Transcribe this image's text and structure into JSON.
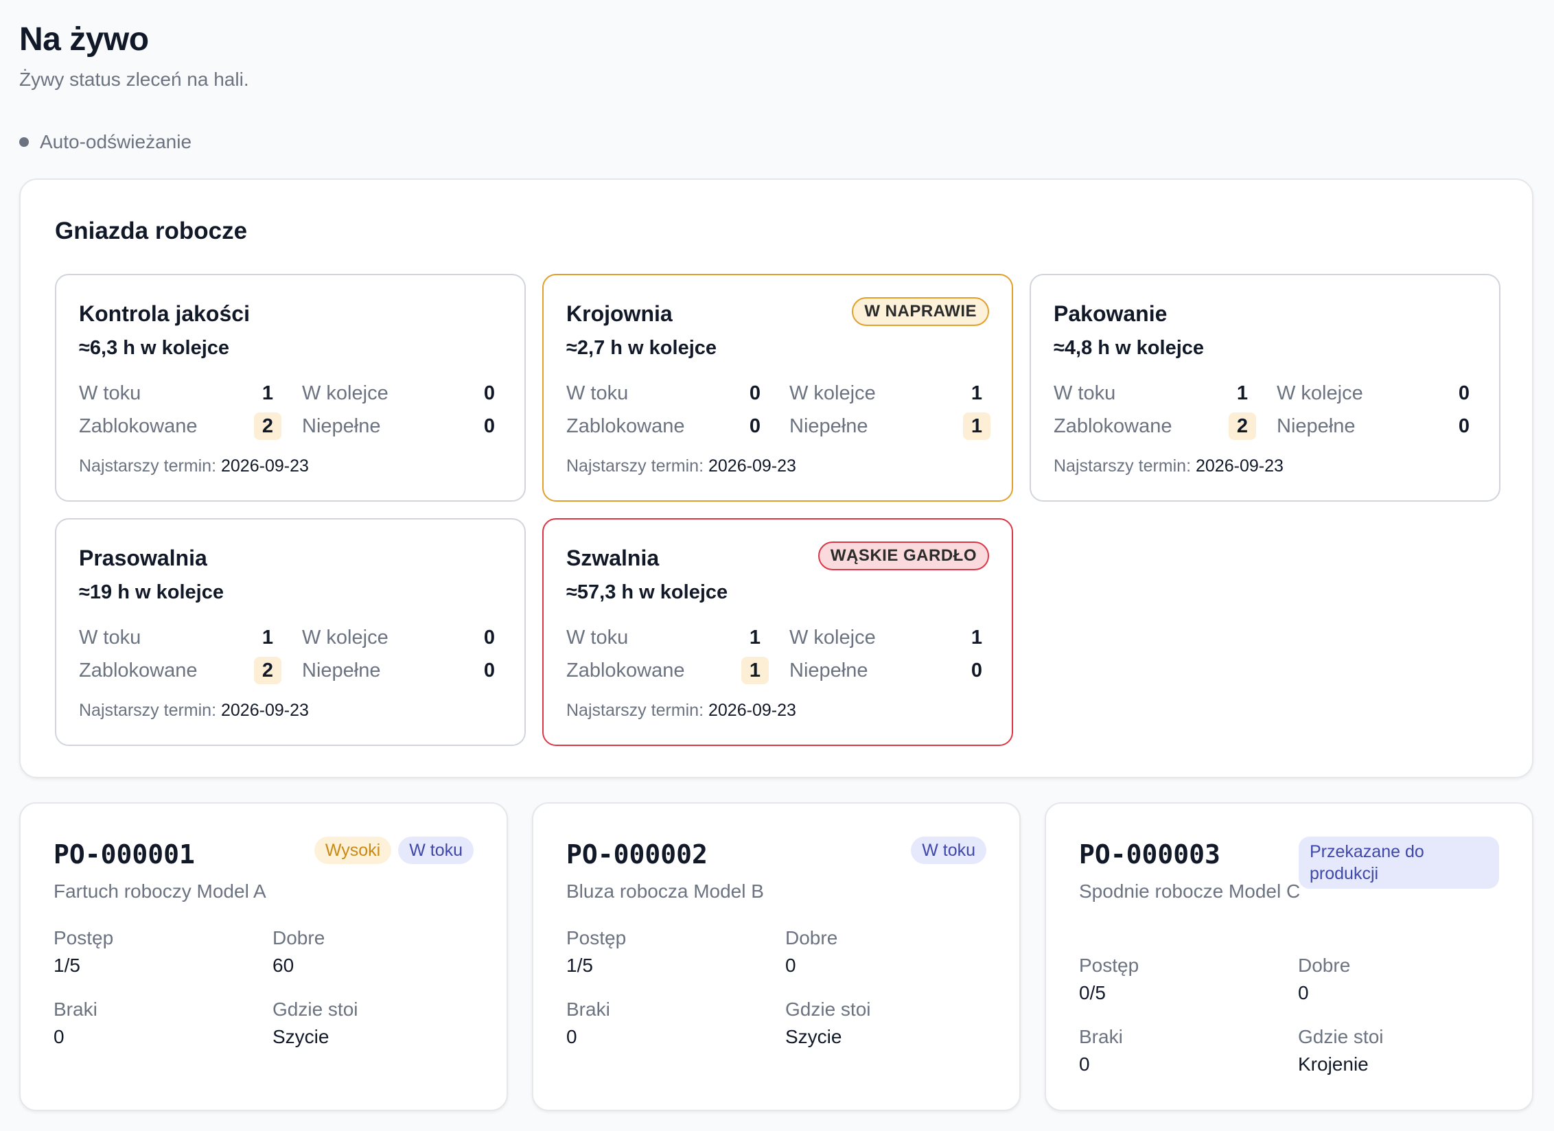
{
  "header": {
    "title": "Na żywo",
    "subtitle": "Żywy status zleceń na hali.",
    "auto_refresh_label": "Auto-odświeżanie"
  },
  "workcenters": {
    "title": "Gniazda robocze",
    "labels": {
      "in_progress": "W toku",
      "queued": "W kolejce",
      "blocked": "Zablokowane",
      "incomplete": "Niepełne",
      "oldest_deadline": "Najstarszy termin:"
    },
    "items": [
      {
        "name": "Kontrola jakości",
        "queue": "≈6,3 h w kolejce",
        "badge": "",
        "status": "normal",
        "in_progress": "1",
        "queued": "0",
        "blocked": "2",
        "incomplete": "0",
        "deadline": "2026-09-23"
      },
      {
        "name": "Krojownia",
        "queue": "≈2,7 h w kolejce",
        "badge": "W NAPRAWIE",
        "status": "warn",
        "in_progress": "0",
        "queued": "1",
        "blocked": "0",
        "incomplete": "1",
        "deadline": "2026-09-23"
      },
      {
        "name": "Pakowanie",
        "queue": "≈4,8 h w kolejce",
        "badge": "",
        "status": "normal",
        "in_progress": "1",
        "queued": "0",
        "blocked": "2",
        "incomplete": "0",
        "deadline": "2026-09-23"
      },
      {
        "name": "Prasowalnia",
        "queue": "≈19 h w kolejce",
        "badge": "",
        "status": "normal",
        "in_progress": "1",
        "queued": "0",
        "blocked": "2",
        "incomplete": "0",
        "deadline": "2026-09-23"
      },
      {
        "name": "Szwalnia",
        "queue": "≈57,3 h w kolejce",
        "badge": "WĄSKIE GARDŁO",
        "status": "danger",
        "in_progress": "1",
        "queued": "1",
        "blocked": "1",
        "incomplete": "0",
        "deadline": "2026-09-23"
      }
    ]
  },
  "orders": {
    "labels": {
      "progress": "Postęp",
      "good": "Dobre",
      "scrap": "Braki",
      "location": "Gdzie stoi"
    },
    "items": [
      {
        "number": "PO-000001",
        "product": "Fartuch roboczy Model A",
        "priority_tag": "Wysoki",
        "status_tag": "W toku",
        "progress": "1/5",
        "good": "60",
        "scrap": "0",
        "location": "Szycie"
      },
      {
        "number": "PO-000002",
        "product": "Bluza robocza Model B",
        "priority_tag": "",
        "status_tag": "W toku",
        "progress": "1/5",
        "good": "0",
        "scrap": "0",
        "location": "Szycie"
      },
      {
        "number": "PO-000003",
        "product": "Spodnie robocze Model C",
        "priority_tag": "",
        "status_tag": "Przekazane do produkcji",
        "progress": "0/5",
        "good": "0",
        "scrap": "0",
        "location": "Krojenie"
      }
    ]
  },
  "colors": {
    "warn": "#e0a02a",
    "danger": "#dc3545",
    "highlight": "#fcefd6",
    "tag_blue_text": "#3f48a8",
    "tag_yellow_text": "#c98a13"
  }
}
